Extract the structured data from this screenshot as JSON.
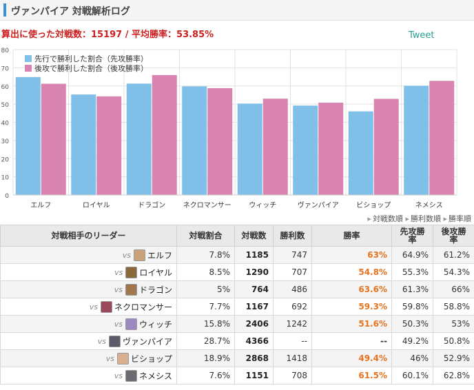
{
  "header": {
    "title": "ヴァンパイア 対戦解析ログ"
  },
  "summary": {
    "text": "算出に使った対戦数：15197 / 平均勝率：53.85%"
  },
  "tweet": {
    "label": "Tweet"
  },
  "colors": {
    "first": "#7fbfe8",
    "second": "#d883b0",
    "rate": "#e8731e",
    "summary": "#cc1f1f"
  },
  "chart_data": {
    "type": "bar",
    "categories": [
      "エルフ",
      "ロイヤル",
      "ドラゴン",
      "ネクロマンサー",
      "ウィッチ",
      "ヴァンパイア",
      "ビショップ",
      "ネメシス"
    ],
    "series": [
      {
        "name": "先行で勝利した割合（先攻勝率）",
        "color": "#7fbfe8",
        "values": [
          64.9,
          55.3,
          61.3,
          59.8,
          50.3,
          49.2,
          46.0,
          60.1
        ]
      },
      {
        "name": "後攻で勝利した割合（後攻勝率）",
        "color": "#d883b0",
        "values": [
          61.2,
          54.3,
          66.0,
          58.8,
          53.0,
          50.8,
          52.9,
          62.8
        ]
      }
    ],
    "yticks": [
      "0",
      "10",
      "20",
      "30",
      "40",
      "50",
      "60",
      "70",
      "80"
    ],
    "ylim": [
      0,
      80
    ],
    "grid": true,
    "legend_position": "top-left"
  },
  "sort_links": [
    "対戦数順",
    "勝利数順",
    "勝率順"
  ],
  "table": {
    "headers": [
      "対戦相手のリーダー",
      "対戦割合",
      "対戦数",
      "勝利数",
      "勝率",
      "先攻勝率",
      "後攻勝率"
    ],
    "vs_label": "vs",
    "rows": [
      {
        "leader": "エルフ",
        "share": "7.8%",
        "games": "1185",
        "wins": "747",
        "rate": "63%",
        "first": "64.9%",
        "second": "61.2%",
        "avatar": "#c9a27a"
      },
      {
        "leader": "ロイヤル",
        "share": "8.5%",
        "games": "1290",
        "wins": "707",
        "rate": "54.8%",
        "first": "55.3%",
        "second": "54.3%",
        "avatar": "#8a6a3a"
      },
      {
        "leader": "ドラゴン",
        "share": "5%",
        "games": "764",
        "wins": "486",
        "rate": "63.6%",
        "first": "61.3%",
        "second": "66%",
        "avatar": "#a07850"
      },
      {
        "leader": "ネクロマンサー",
        "share": "7.7%",
        "games": "1167",
        "wins": "692",
        "rate": "59.3%",
        "first": "59.8%",
        "second": "58.8%",
        "avatar": "#9a4a5a"
      },
      {
        "leader": "ウィッチ",
        "share": "15.8%",
        "games": "2406",
        "wins": "1242",
        "rate": "51.6%",
        "first": "50.3%",
        "second": "53%",
        "avatar": "#9a8ac0"
      },
      {
        "leader": "ヴァンパイア",
        "share": "28.7%",
        "games": "4366",
        "wins": "--",
        "rate": "--",
        "first": "49.2%",
        "second": "50.8%",
        "avatar": "#5a5a6a"
      },
      {
        "leader": "ビショップ",
        "share": "18.9%",
        "games": "2868",
        "wins": "1418",
        "rate": "49.4%",
        "first": "46%",
        "second": "52.9%",
        "avatar": "#d8b090"
      },
      {
        "leader": "ネメシス",
        "share": "7.6%",
        "games": "1151",
        "wins": "708",
        "rate": "61.5%",
        "first": "60.1%",
        "second": "62.8%",
        "avatar": "#6a6a70"
      }
    ]
  }
}
